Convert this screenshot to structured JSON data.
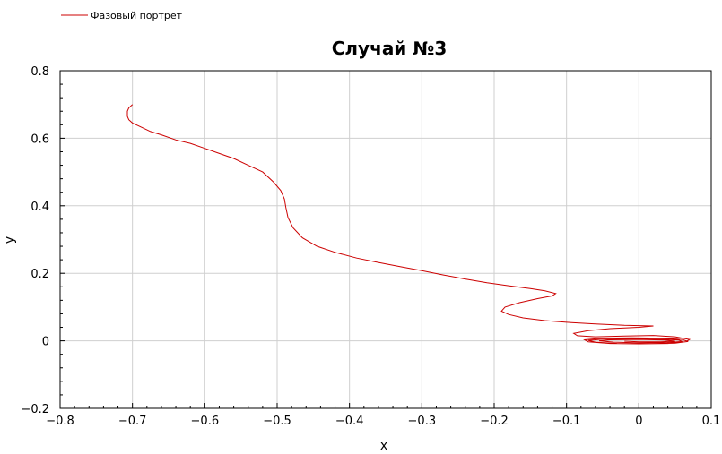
{
  "chart_data": {
    "type": "line",
    "title": "Случай №3",
    "xlabel": "x",
    "ylabel": "y",
    "xlim": [
      -0.8,
      0.1
    ],
    "ylim": [
      -0.2,
      0.8
    ],
    "grid": true,
    "legend_position": "top-left",
    "x_ticks": [
      -0.8,
      -0.7,
      -0.6,
      -0.5,
      -0.4,
      -0.3,
      -0.2,
      -0.1,
      0,
      0.1
    ],
    "x_tick_labels": [
      "−0.8",
      "−0.7",
      "−0.6",
      "−0.5",
      "−0.4",
      "−0.3",
      "−0.2",
      "−0.1",
      "0",
      "0.1"
    ],
    "y_ticks": [
      -0.2,
      0,
      0.2,
      0.4,
      0.6,
      0.8
    ],
    "y_tick_labels": [
      "−0.2",
      "0",
      "0.2",
      "0.4",
      "0.6",
      "0.8"
    ],
    "series": [
      {
        "name": "Фазовый портрет",
        "color": "#cc0000",
        "points": [
          [
            -0.7,
            0.7
          ],
          [
            -0.705,
            0.69
          ],
          [
            -0.707,
            0.68
          ],
          [
            -0.707,
            0.665
          ],
          [
            -0.705,
            0.655
          ],
          [
            -0.7,
            0.645
          ],
          [
            -0.69,
            0.635
          ],
          [
            -0.675,
            0.62
          ],
          [
            -0.66,
            0.61
          ],
          [
            -0.64,
            0.595
          ],
          [
            -0.62,
            0.585
          ],
          [
            -0.6,
            0.57
          ],
          [
            -0.58,
            0.555
          ],
          [
            -0.56,
            0.54
          ],
          [
            -0.54,
            0.52
          ],
          [
            -0.52,
            0.5
          ],
          [
            -0.505,
            0.47
          ],
          [
            -0.495,
            0.445
          ],
          [
            -0.49,
            0.42
          ],
          [
            -0.488,
            0.395
          ],
          [
            -0.485,
            0.365
          ],
          [
            -0.478,
            0.335
          ],
          [
            -0.465,
            0.305
          ],
          [
            -0.445,
            0.28
          ],
          [
            -0.42,
            0.262
          ],
          [
            -0.39,
            0.245
          ],
          [
            -0.36,
            0.232
          ],
          [
            -0.33,
            0.22
          ],
          [
            -0.3,
            0.208
          ],
          [
            -0.27,
            0.195
          ],
          [
            -0.24,
            0.183
          ],
          [
            -0.21,
            0.172
          ],
          [
            -0.18,
            0.163
          ],
          [
            -0.15,
            0.155
          ],
          [
            -0.13,
            0.148
          ],
          [
            -0.115,
            0.14
          ],
          [
            -0.12,
            0.133
          ],
          [
            -0.14,
            0.125
          ],
          [
            -0.165,
            0.113
          ],
          [
            -0.185,
            0.1
          ],
          [
            -0.19,
            0.088
          ],
          [
            -0.18,
            0.078
          ],
          [
            -0.16,
            0.068
          ],
          [
            -0.13,
            0.06
          ],
          [
            -0.1,
            0.055
          ],
          [
            -0.06,
            0.05
          ],
          [
            -0.02,
            0.046
          ],
          [
            0.02,
            0.044
          ],
          [
            0.0,
            0.04
          ],
          [
            -0.04,
            0.036
          ],
          [
            -0.07,
            0.03
          ],
          [
            -0.09,
            0.022
          ],
          [
            -0.085,
            0.015
          ],
          [
            -0.06,
            0.012
          ],
          [
            -0.02,
            0.014
          ],
          [
            0.02,
            0.016
          ],
          [
            0.05,
            0.012
          ],
          [
            0.07,
            0.004
          ],
          [
            0.065,
            -0.003
          ],
          [
            0.04,
            -0.008
          ],
          [
            0.0,
            -0.009
          ],
          [
            -0.04,
            -0.008
          ],
          [
            -0.07,
            -0.003
          ],
          [
            -0.075,
            0.003
          ],
          [
            -0.05,
            0.008
          ],
          [
            -0.01,
            0.009
          ],
          [
            0.03,
            0.008
          ],
          [
            0.06,
            0.004
          ],
          [
            0.068,
            -0.002
          ],
          [
            0.05,
            -0.007
          ],
          [
            0.01,
            -0.009
          ],
          [
            -0.03,
            -0.008
          ],
          [
            -0.06,
            -0.004
          ],
          [
            -0.07,
            0.001
          ],
          [
            -0.05,
            0.005
          ],
          [
            -0.01,
            0.006
          ],
          [
            0.03,
            0.005
          ],
          [
            0.055,
            0.002
          ],
          [
            0.06,
            -0.002
          ],
          [
            0.04,
            -0.005
          ],
          [
            0.0,
            -0.006
          ],
          [
            -0.035,
            -0.004
          ],
          [
            -0.055,
            0.0
          ],
          [
            -0.04,
            0.003
          ],
          [
            0.0,
            0.004
          ],
          [
            0.035,
            0.002
          ],
          [
            0.05,
            -0.001
          ],
          [
            0.03,
            -0.003
          ],
          [
            0.0,
            -0.003
          ],
          [
            -0.02,
            -0.001
          ]
        ]
      }
    ]
  }
}
